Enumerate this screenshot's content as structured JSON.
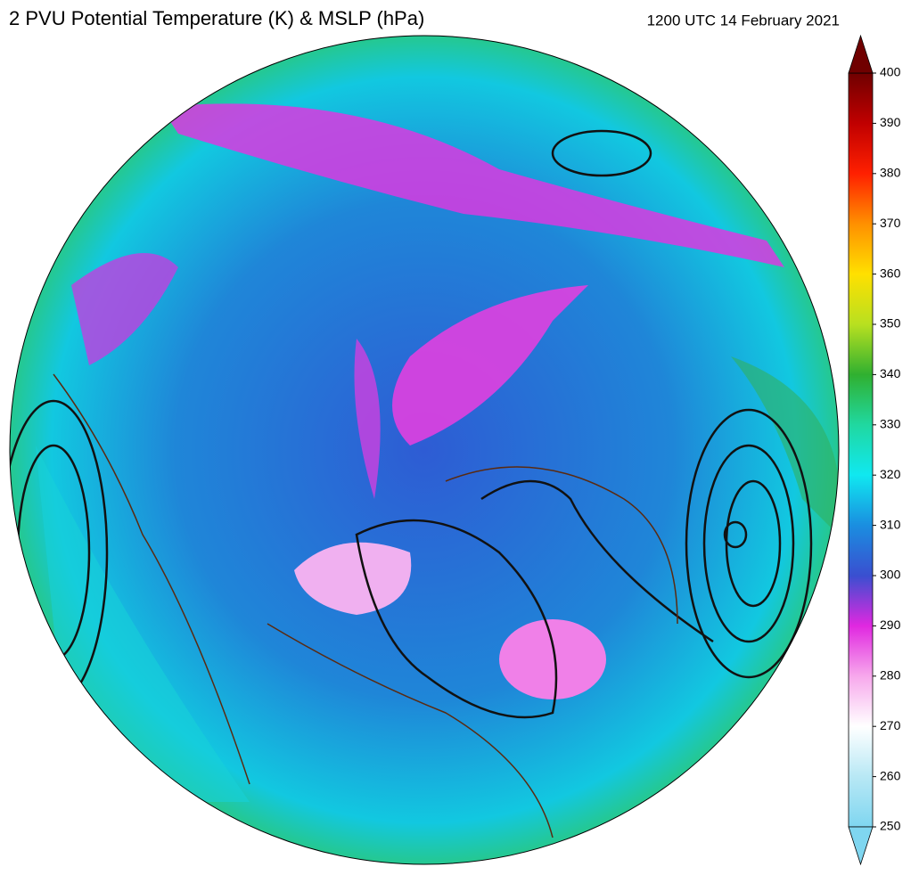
{
  "title": "2 PVU Potential Temperature (K) & MSLP (hPa)",
  "timestamp": "1200 UTC 14 February 2021",
  "colorbar": {
    "lim": [
      250,
      400
    ],
    "ticks": [
      250,
      260,
      270,
      280,
      290,
      300,
      310,
      320,
      330,
      340,
      350,
      360,
      370,
      380,
      390,
      400
    ],
    "colors": [
      "#7fd6f0",
      "#b8e8f5",
      "#ffffff",
      "#f7a8ec",
      "#e028e0",
      "#3a4fd0",
      "#1a8ee0",
      "#10e8f0",
      "#20d8a0",
      "#30b030",
      "#b8e020",
      "#ffe000",
      "#ff9000",
      "#ff2000",
      "#c00000",
      "#700000"
    ]
  }
}
